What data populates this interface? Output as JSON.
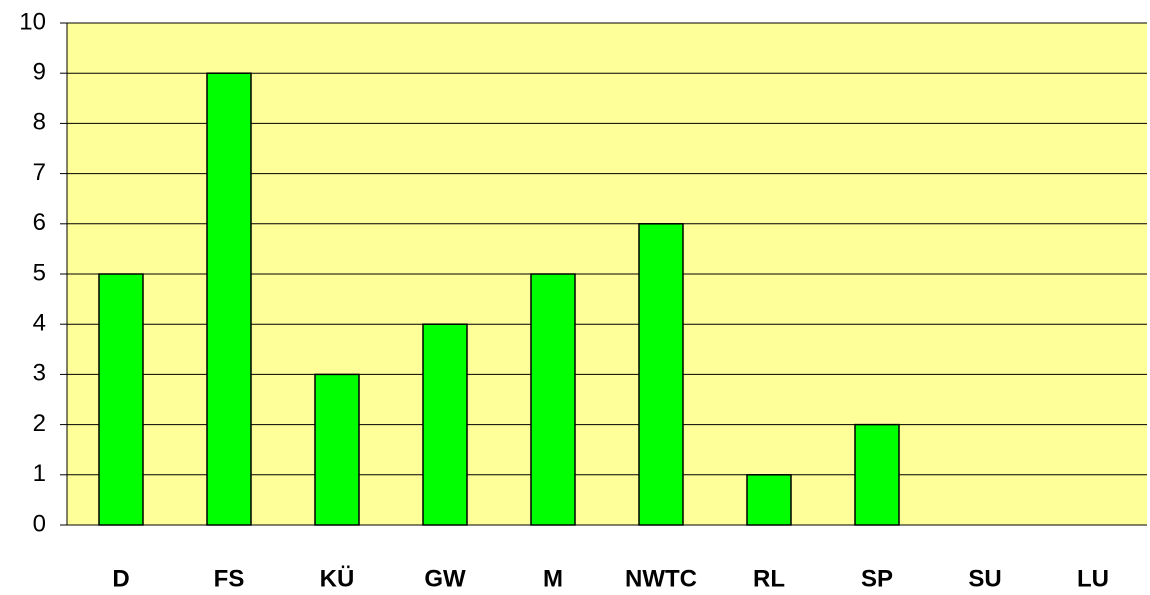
{
  "chart_data": {
    "type": "bar",
    "categories": [
      "D",
      "FS",
      "KÜ",
      "GW",
      "M",
      "NWTC",
      "RL",
      "SP",
      "SU",
      "LU"
    ],
    "values": [
      5,
      9,
      3,
      4,
      5,
      6,
      1,
      2,
      0,
      0
    ],
    "color": "#00ff00",
    "background": "#ffff99",
    "ylim": [
      0,
      10
    ],
    "yticks": [
      0,
      1,
      2,
      3,
      4,
      5,
      6,
      7,
      8,
      9,
      10
    ],
    "grid": true
  }
}
